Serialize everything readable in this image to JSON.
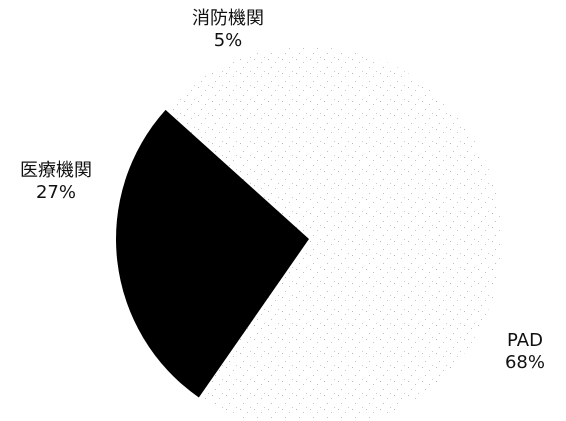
{
  "chart_data": {
    "type": "pie",
    "title": "",
    "slices": [
      {
        "label": "消防機関",
        "value": 5,
        "value_label": "5%",
        "color": "#ffffff"
      },
      {
        "label": "医療機関",
        "value": 27,
        "value_label": "27%",
        "color": "#000000"
      },
      {
        "label": "PAD",
        "value": 68,
        "value_label": "68%",
        "color": "#ffffff"
      }
    ],
    "legend": "none"
  }
}
